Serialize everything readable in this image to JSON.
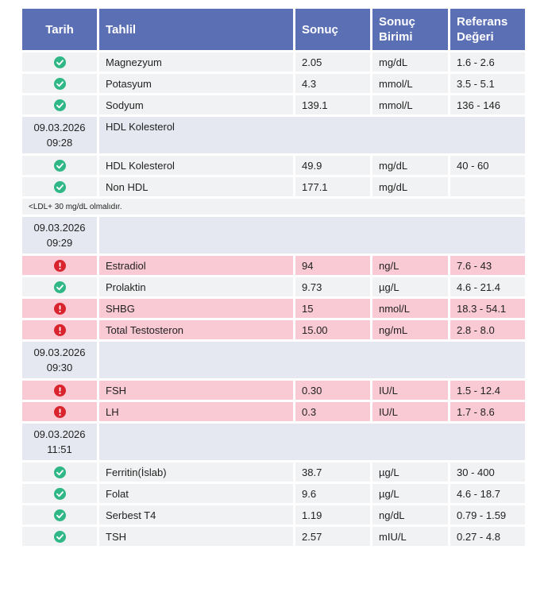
{
  "headers": {
    "tarih": "Tarih",
    "tahlil": "Tahlil",
    "sonuc": "Sonuç",
    "birim": "Sonuç Birimi",
    "referans": "Referans Değeri"
  },
  "rows": [
    {
      "type": "result",
      "status": "ok",
      "name": "Magnezyum",
      "value": "2.05",
      "unit": "mg/dL",
      "ref": "1.6 - 2.6"
    },
    {
      "type": "result",
      "status": "ok",
      "name": "Potasyum",
      "value": "4.3",
      "unit": "mmol/L",
      "ref": "3.5 - 5.1"
    },
    {
      "type": "result",
      "status": "ok",
      "name": "Sodyum",
      "value": "139.1",
      "unit": "mmol/L",
      "ref": "136 - 146"
    },
    {
      "type": "group",
      "date": "09.03.2026",
      "time": "09:28",
      "name": "HDL Kolesterol"
    },
    {
      "type": "result",
      "status": "ok",
      "name": "HDL Kolesterol",
      "value": "49.9",
      "unit": "mg/dL",
      "ref": "40 - 60"
    },
    {
      "type": "result",
      "status": "ok",
      "name": "Non HDL",
      "value": "177.1",
      "unit": "mg/dL",
      "ref": ""
    },
    {
      "type": "note",
      "text": "<LDL+ 30 mg/dL olmalıdır."
    },
    {
      "type": "group",
      "date": "09.03.2026",
      "time": "09:29",
      "name": ""
    },
    {
      "type": "result",
      "status": "bad",
      "name": "Estradiol",
      "value": "94",
      "unit": "ng/L",
      "ref": "7.6 - 43"
    },
    {
      "type": "result",
      "status": "ok",
      "name": "Prolaktin",
      "value": "9.73",
      "unit": "µg/L",
      "ref": "4.6 - 21.4"
    },
    {
      "type": "result",
      "status": "bad",
      "name": "SHBG",
      "value": "15",
      "unit": "nmol/L",
      "ref": "18.3 - 54.1"
    },
    {
      "type": "result",
      "status": "bad",
      "name": "Total Testosteron",
      "value": "15.00",
      "unit": "ng/mL",
      "ref": "2.8 - 8.0"
    },
    {
      "type": "group",
      "date": "09.03.2026",
      "time": "09:30",
      "name": ""
    },
    {
      "type": "result",
      "status": "bad",
      "name": "FSH",
      "value": "0.30",
      "unit": "IU/L",
      "ref": "1.5 - 12.4"
    },
    {
      "type": "result",
      "status": "bad",
      "name": "LH",
      "value": "0.3",
      "unit": "IU/L",
      "ref": "1.7 - 8.6"
    },
    {
      "type": "group",
      "date": "09.03.2026",
      "time": "11:51",
      "name": ""
    },
    {
      "type": "result",
      "status": "ok",
      "name": "Ferritin(İslab)",
      "value": "38.7",
      "unit": "µg/L",
      "ref": "30 - 400"
    },
    {
      "type": "result",
      "status": "ok",
      "name": "Folat",
      "value": "9.6",
      "unit": "µg/L",
      "ref": "4.6 - 18.7"
    },
    {
      "type": "result",
      "status": "ok",
      "name": "Serbest T4",
      "value": "1.19",
      "unit": "ng/dL",
      "ref": "0.79 - 1.59"
    },
    {
      "type": "result",
      "status": "ok",
      "name": "TSH",
      "value": "2.57",
      "unit": "mIU/L",
      "ref": "0.27 - 4.8"
    }
  ],
  "icons": {
    "ok": "check-circle-icon",
    "bad": "exclamation-circle-icon"
  },
  "colors": {
    "header": "#5b6fb5",
    "ok_row": "#f1f2f3",
    "bad_row": "#f9c9d4",
    "group_row": "#e5e8f0",
    "ok_icon": "#2fb786",
    "bad_icon": "#d9232d"
  }
}
